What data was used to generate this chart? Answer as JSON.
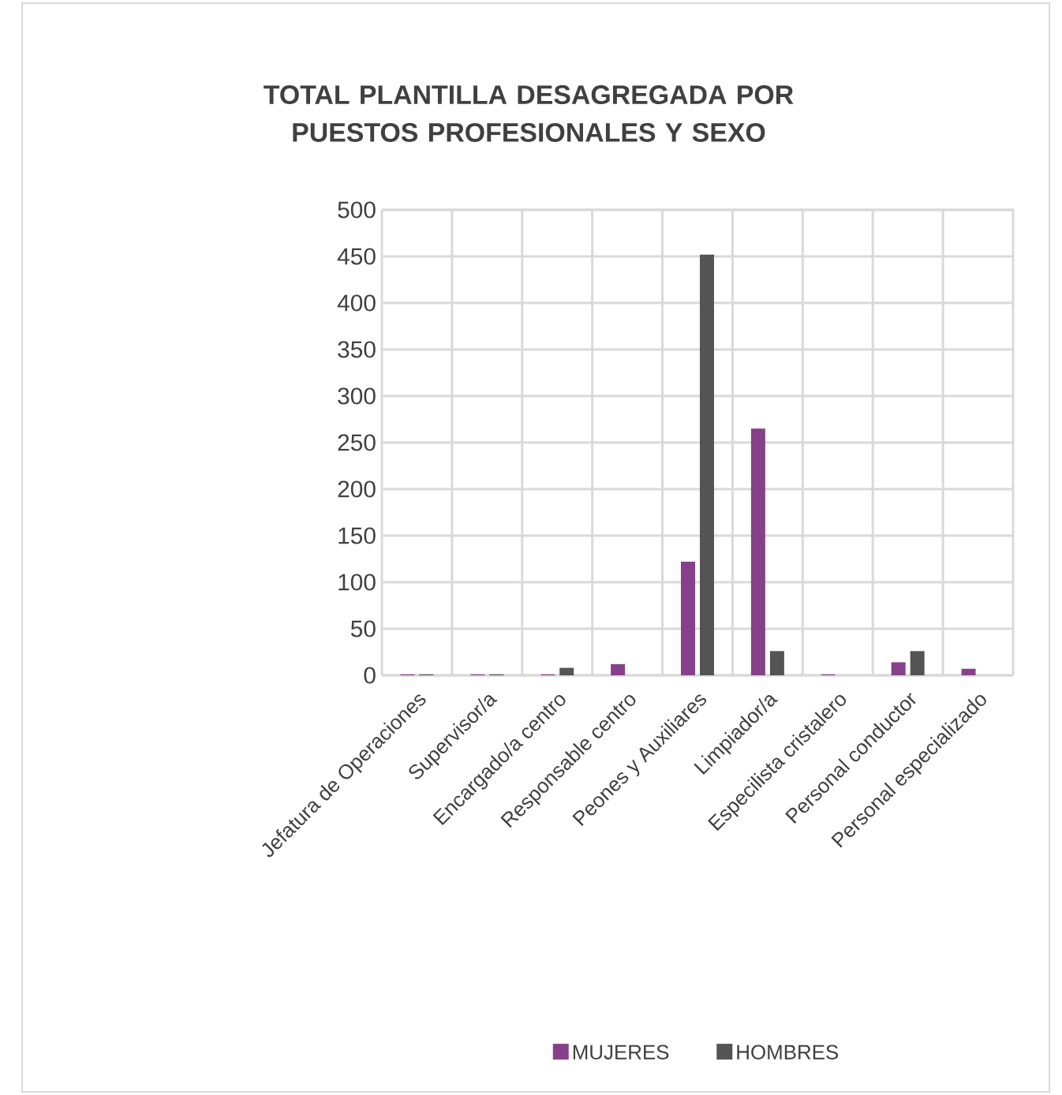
{
  "chart_data": {
    "type": "bar",
    "title": "TOTAL PLANTILLA DESAGREGADA POR PUESTOS PROFESIONALES Y SEXO",
    "categories": [
      "Jefatura de Operaciones",
      "Supervisor/a",
      "Encargado/a centro",
      "Responsable centro",
      "Peones y Auxiliares",
      "Limpiador/a",
      "Especilista cristalero",
      "Personal conductor",
      "Personal especializado"
    ],
    "series": [
      {
        "name": "MUJERES",
        "color": "#86418a",
        "values": [
          1,
          1,
          1,
          12,
          122,
          265,
          1,
          14,
          7
        ]
      },
      {
        "name": "HOMBRES",
        "color": "#545454",
        "values": [
          1,
          1,
          8,
          0,
          452,
          26,
          0,
          26,
          0
        ]
      }
    ],
    "ylim": [
      0,
      500
    ],
    "yticks": [
      0,
      50,
      100,
      150,
      200,
      250,
      300,
      350,
      400,
      450,
      500
    ],
    "grid": true,
    "legend": "bottom"
  }
}
